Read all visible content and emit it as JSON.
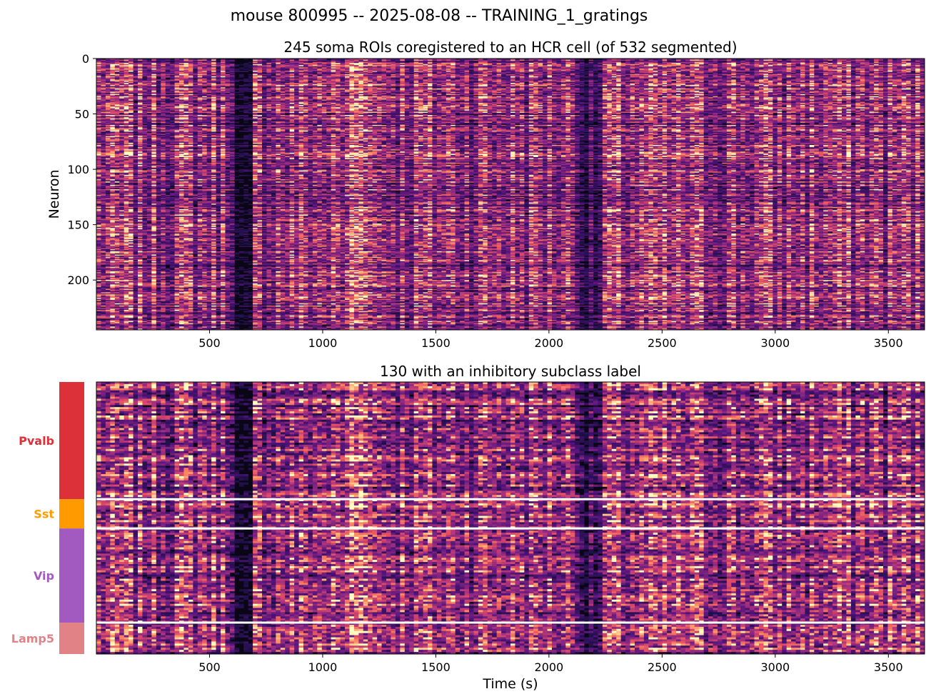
{
  "figure": {
    "suptitle": "mouse 800995  --  2025-08-08  --  TRAINING_1_gratings"
  },
  "chart_data": [
    {
      "type": "heatmap",
      "title": "245 soma ROIs coregistered to an HCR cell (of 532 segmented)",
      "xlabel": "",
      "ylabel": "Neuron",
      "n_rows": 245,
      "xlim": [
        0,
        3660
      ],
      "ylim": [
        245,
        0
      ],
      "x_ticks": [
        500,
        1000,
        1500,
        2000,
        2500,
        3000,
        3500
      ],
      "x_tick_labels": [
        "500",
        "1000",
        "1500",
        "2000",
        "2500",
        "3000",
        "3500"
      ],
      "y_ticks": [
        0,
        50,
        100,
        150,
        200
      ],
      "y_tick_labels": [
        "0",
        "50",
        "100",
        "150",
        "200"
      ],
      "colormap": "magma",
      "colors": [
        "#000004",
        "#1c1044",
        "#4f127b",
        "#812581",
        "#b5367a",
        "#e55064",
        "#fb8761",
        "#fec287",
        "#fcfdbf"
      ]
    },
    {
      "type": "heatmap",
      "title": "130 with an inhibitory subclass label",
      "xlabel": "Time (s)",
      "ylabel": "",
      "n_rows": 130,
      "xlim": [
        0,
        3660
      ],
      "x_ticks": [
        500,
        1000,
        1500,
        2000,
        2500,
        3000,
        3500
      ],
      "x_tick_labels": [
        "500",
        "1000",
        "1500",
        "2000",
        "2500",
        "3000",
        "3500"
      ],
      "colormap": "magma",
      "groups": [
        {
          "name": "Pvalb",
          "count": 56,
          "color": "#dc3139"
        },
        {
          "name": "Sst",
          "count": 14,
          "color": "#ff9b00"
        },
        {
          "name": "Vip",
          "count": 45,
          "color": "#a25ac0"
        },
        {
          "name": "Lamp5",
          "count": 15,
          "color": "#e08286"
        }
      ],
      "separator_color": "#ffffff"
    }
  ]
}
